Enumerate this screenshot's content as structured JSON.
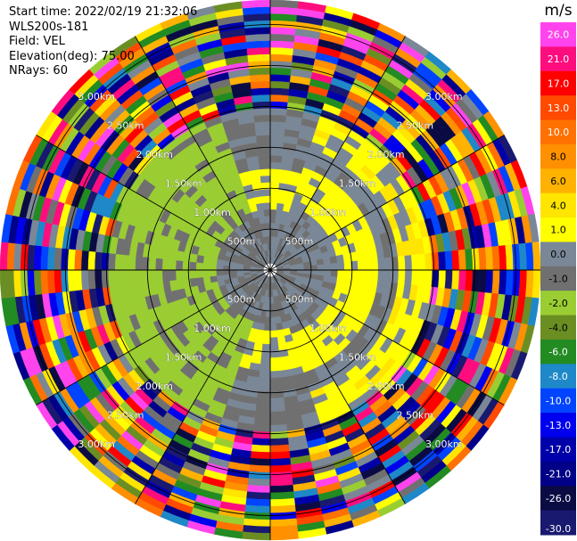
{
  "info": {
    "start_time": "Start time: 2022/02/19 21:32:06",
    "instrument": "WLS200s-181",
    "field": "Field: VEL",
    "elevation": "Elevation(deg): 75.00",
    "nrays": "NRays: 60"
  },
  "chart_data": {
    "type": "ppi",
    "field": "VEL",
    "units": "m/s",
    "range_ring_labels": [
      "500m",
      "1.00km",
      "1.50km",
      "2.00km",
      "2.50km",
      "3.00km"
    ],
    "range_rings_km": [
      0.5,
      1.0,
      1.5,
      2.0,
      2.5,
      3.0
    ],
    "max_range_km": 3.3,
    "n_rays": 60,
    "colorbar": {
      "ticks": [
        "26.0",
        "21.0",
        "17.0",
        "13.0",
        "10.0",
        "8.0",
        "6.0",
        "4.0",
        "1.0",
        "0.0",
        "-1.0",
        "-2.0",
        "-4.0",
        "-6.0",
        "-8.0",
        "-10.0",
        "-13.0",
        "-17.0",
        "-21.0",
        "-26.0",
        "-30.0"
      ],
      "colors": [
        "#ff44ee",
        "#ff0d7e",
        "#ff0000",
        "#ff4a00",
        "#ff7100",
        "#ff9000",
        "#ffb200",
        "#ffe500",
        "#ffff00",
        "#7a8796",
        "#707070",
        "#9acd32",
        "#6b8e23",
        "#228b22",
        "#1e88c8",
        "#0044ff",
        "#0000ee",
        "#0000aa",
        "#000088",
        "#0b0b44",
        "#191970"
      ]
    }
  }
}
